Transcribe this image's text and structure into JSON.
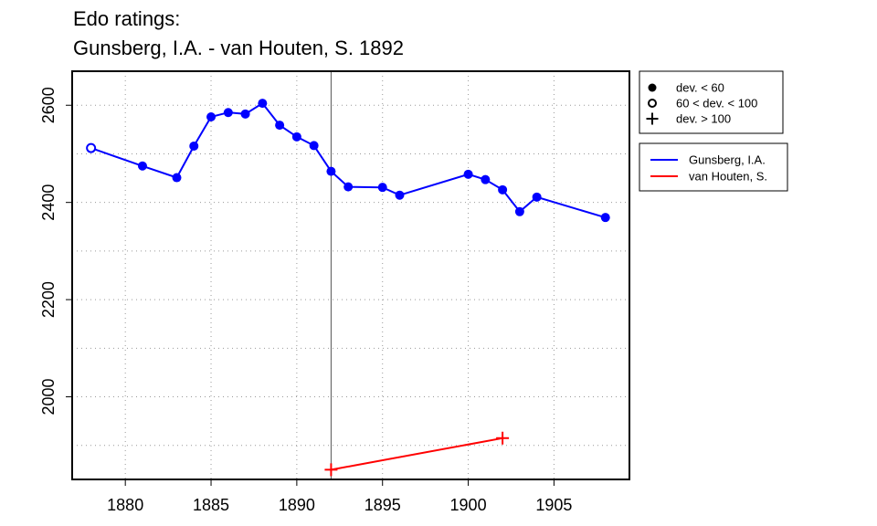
{
  "chart_data": {
    "type": "line",
    "title_lines": [
      "Edo ratings:",
      "Gunsberg, I.A. - van Houten, S. 1892"
    ],
    "xlabel": "",
    "ylabel": "",
    "xlim": [
      1876.9,
      1909.4
    ],
    "ylim": [
      1830,
      2670
    ],
    "x_ticks": [
      1880,
      1885,
      1890,
      1895,
      1900,
      1905
    ],
    "y_ticks": [
      2000,
      2200,
      2400,
      2600
    ],
    "x_grid": [
      1880,
      1885,
      1890,
      1895,
      1900,
      1905
    ],
    "y_grid": [
      1900,
      2000,
      2100,
      2200,
      2300,
      2400,
      2500,
      2600
    ],
    "grid": true,
    "vline_x": 1892,
    "legend_markers": {
      "placement": "top-right outside",
      "entries": [
        {
          "label": "dev. < 60",
          "marker": "filled-circle"
        },
        {
          "label": "60 < dev. < 100",
          "marker": "open-circle"
        },
        {
          "label": "dev. > 100",
          "marker": "plus"
        }
      ]
    },
    "legend_series": {
      "placement": "right outside",
      "entries": [
        {
          "label": "Gunsberg, I.A.",
          "color": "#0000ff"
        },
        {
          "label": "van Houten, S.",
          "color": "#ff0000"
        }
      ]
    },
    "series": [
      {
        "name": "Gunsberg, I.A.",
        "color": "#0000ff",
        "points": [
          {
            "x": 1878,
            "y": 2512,
            "marker": "open-circle"
          },
          {
            "x": 1881,
            "y": 2475,
            "marker": "filled-circle"
          },
          {
            "x": 1883,
            "y": 2451,
            "marker": "filled-circle"
          },
          {
            "x": 1884,
            "y": 2516,
            "marker": "filled-circle"
          },
          {
            "x": 1885,
            "y": 2576,
            "marker": "filled-circle"
          },
          {
            "x": 1886,
            "y": 2585,
            "marker": "filled-circle"
          },
          {
            "x": 1887,
            "y": 2582,
            "marker": "filled-circle"
          },
          {
            "x": 1888,
            "y": 2604,
            "marker": "filled-circle"
          },
          {
            "x": 1889,
            "y": 2559,
            "marker": "filled-circle"
          },
          {
            "x": 1890,
            "y": 2535,
            "marker": "filled-circle"
          },
          {
            "x": 1891,
            "y": 2517,
            "marker": "filled-circle"
          },
          {
            "x": 1892,
            "y": 2464,
            "marker": "filled-circle"
          },
          {
            "x": 1893,
            "y": 2432,
            "marker": "filled-circle"
          },
          {
            "x": 1895,
            "y": 2431,
            "marker": "filled-circle"
          },
          {
            "x": 1896,
            "y": 2415,
            "marker": "filled-circle"
          },
          {
            "x": 1900,
            "y": 2458,
            "marker": "filled-circle"
          },
          {
            "x": 1901,
            "y": 2447,
            "marker": "filled-circle"
          },
          {
            "x": 1902,
            "y": 2426,
            "marker": "filled-circle"
          },
          {
            "x": 1903,
            "y": 2381,
            "marker": "filled-circle"
          },
          {
            "x": 1904,
            "y": 2411,
            "marker": "filled-circle"
          },
          {
            "x": 1908,
            "y": 2369,
            "marker": "filled-circle"
          }
        ]
      },
      {
        "name": "van Houten, S.",
        "color": "#ff0000",
        "points": [
          {
            "x": 1892,
            "y": 1850,
            "marker": "plus"
          },
          {
            "x": 1902,
            "y": 1915,
            "marker": "plus"
          }
        ]
      }
    ]
  }
}
